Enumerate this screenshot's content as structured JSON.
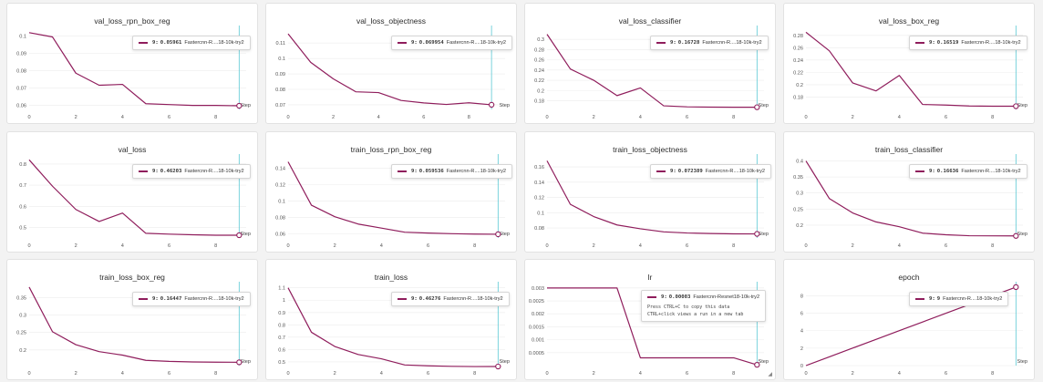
{
  "colors": {
    "line": "#8f1d5c",
    "cursor": "#5bc8d4",
    "grid": "#ececec",
    "tick": "#555555"
  },
  "x_axis_label": "Step",
  "tooltip_hint": [
    "Press CTRL+C to copy this data",
    "CTRL+click views a run in a new tab"
  ],
  "chart_data": [
    {
      "type": "line",
      "title": "val_loss_rpn_box_reg",
      "x": [
        0,
        1,
        2,
        3,
        4,
        5,
        6,
        7,
        8,
        9
      ],
      "values": [
        0.102,
        0.0995,
        0.0785,
        0.0715,
        0.072,
        0.0608,
        0.0603,
        0.0598,
        0.0598,
        0.0596
      ],
      "xlim": [
        0,
        9.3
      ],
      "ylim": [
        0.0575,
        0.104
      ],
      "xticks": [
        0,
        2,
        4,
        6,
        8
      ],
      "yticks": [
        0.06,
        0.07,
        0.08,
        0.09,
        0.1
      ],
      "ytick_labels": [
        "0.06",
        "0.07",
        "0.08",
        "0.09",
        "0.1"
      ],
      "tooltip": {
        "step": "9:",
        "value": "0.05961",
        "run": "Fastercnn-R....18-10k-try2"
      }
    },
    {
      "type": "line",
      "title": "val_loss_objectness",
      "x": [
        0,
        1,
        2,
        3,
        4,
        5,
        6,
        7,
        8,
        9
      ],
      "values": [
        0.116,
        0.0975,
        0.0868,
        0.0784,
        0.0779,
        0.0728,
        0.0712,
        0.0702,
        0.0713,
        0.07
      ],
      "xlim": [
        0,
        9.6
      ],
      "ylim": [
        0.067,
        0.119
      ],
      "xticks": [
        0,
        2,
        4,
        6,
        8
      ],
      "yticks": [
        0.07,
        0.08,
        0.09,
        0.1,
        0.11
      ],
      "ytick_labels": [
        "0.07",
        "0.08",
        "0.09",
        "0.1",
        "0.11"
      ],
      "tooltip": {
        "step": "9:",
        "value": "0.069954",
        "run": "Fastercnn-R....18-10k-try2"
      }
    },
    {
      "type": "line",
      "title": "val_loss_classifier",
      "x": [
        0,
        1,
        2,
        3,
        4,
        5,
        6,
        7,
        8,
        9
      ],
      "values": [
        0.31,
        0.242,
        0.22,
        0.19,
        0.205,
        0.17,
        0.168,
        0.1675,
        0.1673,
        0.1673
      ],
      "xlim": [
        0,
        9.3
      ],
      "ylim": [
        0.163,
        0.32
      ],
      "xticks": [
        0,
        2,
        4,
        6,
        8
      ],
      "yticks": [
        0.18,
        0.2,
        0.22,
        0.24,
        0.26,
        0.28,
        0.3
      ],
      "ytick_labels": [
        "0.18",
        "0.2",
        "0.22",
        "0.24",
        "0.26",
        "0.28",
        "0.3"
      ],
      "tooltip": {
        "step": "9:",
        "value": "0.16728",
        "run": "Fastercnn-R....18-10k-try2"
      }
    },
    {
      "type": "line",
      "title": "val_loss_box_reg",
      "x": [
        0,
        1,
        2,
        3,
        4,
        5,
        6,
        7,
        8,
        9
      ],
      "values": [
        0.285,
        0.255,
        0.203,
        0.19,
        0.215,
        0.168,
        0.167,
        0.1655,
        0.1652,
        0.1652
      ],
      "xlim": [
        0,
        9.3
      ],
      "ylim": [
        0.16,
        0.29
      ],
      "xticks": [
        0,
        2,
        4,
        6,
        8
      ],
      "yticks": [
        0.18,
        0.2,
        0.22,
        0.24,
        0.26,
        0.28
      ],
      "ytick_labels": [
        "0.18",
        "0.2",
        "0.22",
        "0.24",
        "0.26",
        "0.28"
      ],
      "tooltip": {
        "step": "9:",
        "value": "0.16519",
        "run": "Fastercnn-R....18-10k-try2"
      }
    },
    {
      "type": "line",
      "title": "val_loss",
      "x": [
        0,
        1,
        2,
        3,
        4,
        5,
        6,
        7,
        8,
        9
      ],
      "values": [
        0.82,
        0.695,
        0.585,
        0.528,
        0.568,
        0.472,
        0.468,
        0.465,
        0.463,
        0.463
      ],
      "xlim": [
        0,
        9.3
      ],
      "ylim": [
        0.45,
        0.83
      ],
      "xticks": [
        0,
        2,
        4,
        6,
        8
      ],
      "yticks": [
        0.5,
        0.6,
        0.7,
        0.8
      ],
      "ytick_labels": [
        "0.5",
        "0.6",
        "0.7",
        "0.8"
      ],
      "tooltip": {
        "step": "9:",
        "value": "0.46203",
        "run": "Fastercnn-R....18-10k-try2"
      }
    },
    {
      "type": "line",
      "title": "train_loss_rpn_box_reg",
      "x": [
        0,
        1,
        2,
        3,
        4,
        5,
        6,
        7,
        8,
        9
      ],
      "values": [
        0.148,
        0.095,
        0.081,
        0.072,
        0.067,
        0.062,
        0.061,
        0.0602,
        0.0597,
        0.0595
      ],
      "xlim": [
        0,
        9.3
      ],
      "ylim": [
        0.055,
        0.153
      ],
      "xticks": [
        0,
        2,
        4,
        6,
        8
      ],
      "yticks": [
        0.06,
        0.08,
        0.1,
        0.12,
        0.14
      ],
      "ytick_labels": [
        "0.06",
        "0.08",
        "0.1",
        "0.12",
        "0.14"
      ],
      "tooltip": {
        "step": "9:",
        "value": "0.059536",
        "run": "Fastercnn-R....18-10k-try2"
      }
    },
    {
      "type": "line",
      "title": "train_loss_objectness",
      "x": [
        0,
        1,
        2,
        3,
        4,
        5,
        6,
        7,
        8,
        9
      ],
      "values": [
        0.168,
        0.111,
        0.095,
        0.084,
        0.079,
        0.075,
        0.0735,
        0.0728,
        0.0724,
        0.0723
      ],
      "xlim": [
        0,
        9.3
      ],
      "ylim": [
        0.067,
        0.172
      ],
      "xticks": [
        0,
        2,
        4,
        6,
        8
      ],
      "yticks": [
        0.08,
        0.1,
        0.12,
        0.14,
        0.16
      ],
      "ytick_labels": [
        "0.08",
        "0.1",
        "0.12",
        "0.14",
        "0.16"
      ],
      "tooltip": {
        "step": "9:",
        "value": "0.072389",
        "run": "Fastercnn-R....18-10k-try2"
      }
    },
    {
      "type": "line",
      "title": "train_loss_classifier",
      "x": [
        0,
        1,
        2,
        3,
        4,
        5,
        6,
        7,
        8,
        9
      ],
      "values": [
        0.4,
        0.283,
        0.238,
        0.21,
        0.195,
        0.175,
        0.17,
        0.167,
        0.1665,
        0.1664
      ],
      "xlim": [
        0,
        9.3
      ],
      "ylim": [
        0.16,
        0.41
      ],
      "xticks": [
        0,
        2,
        4,
        6,
        8
      ],
      "yticks": [
        0.2,
        0.25,
        0.3,
        0.35,
        0.4
      ],
      "ytick_labels": [
        "0.2",
        "0.25",
        "0.3",
        "0.35",
        "0.4"
      ],
      "tooltip": {
        "step": "9:",
        "value": "0.16636",
        "run": "Fastercnn-R....18-10k-try2"
      }
    },
    {
      "type": "line",
      "title": "train_loss_box_reg",
      "x": [
        0,
        1,
        2,
        3,
        4,
        5,
        6,
        7,
        8,
        9
      ],
      "values": [
        0.38,
        0.252,
        0.215,
        0.195,
        0.185,
        0.17,
        0.167,
        0.1655,
        0.1648,
        0.1645
      ],
      "xlim": [
        0,
        9.3
      ],
      "ylim": [
        0.155,
        0.385
      ],
      "xticks": [
        0,
        2,
        4,
        6,
        8
      ],
      "yticks": [
        0.2,
        0.25,
        0.3,
        0.35
      ],
      "ytick_labels": [
        "0.2",
        "0.25",
        "0.3",
        "0.35"
      ],
      "tooltip": {
        "step": "9:",
        "value": "0.16447",
        "run": "Fastercnn-R....18-10k-try2"
      }
    },
    {
      "type": "line",
      "title": "train_loss",
      "x": [
        0,
        1,
        2,
        3,
        4,
        5,
        6,
        7,
        8,
        9
      ],
      "values": [
        1.1,
        0.74,
        0.625,
        0.56,
        0.525,
        0.475,
        0.468,
        0.464,
        0.462,
        0.4628
      ],
      "xlim": [
        0,
        9.3
      ],
      "ylim": [
        0.47,
        1.12
      ],
      "xticks": [
        0,
        2,
        4,
        6,
        8
      ],
      "yticks": [
        0.5,
        0.6,
        0.7,
        0.8,
        0.9,
        1,
        1.1
      ],
      "ytick_labels": [
        "0.5",
        "0.6",
        "0.7",
        "0.8",
        "0.9",
        "1",
        "1.1"
      ],
      "tooltip": {
        "step": "9:",
        "value": "0.46276",
        "run": "Fastercnn-R....18-10k-try2"
      }
    },
    {
      "type": "line",
      "title": "lr",
      "x": [
        0,
        1,
        2,
        3,
        4,
        5,
        6,
        7,
        8,
        9
      ],
      "values": [
        0.003,
        0.003,
        0.003,
        0.003,
        0.0003,
        0.0003,
        0.0003,
        0.0003,
        0.0003,
        3e-05
      ],
      "xlim": [
        0,
        9.3
      ],
      "ylim": [
        0,
        0.0031
      ],
      "xticks": [
        0,
        2,
        4,
        6,
        8
      ],
      "yticks": [
        0.0005,
        0.001,
        0.0015,
        0.002,
        0.0025,
        0.003
      ],
      "ytick_labels": [
        "0.0005",
        "0.001",
        "0.0015",
        "0.002",
        "0.0025",
        "0.003"
      ],
      "tooltip": {
        "step": "9:",
        "value": "0.00003",
        "run": "Fastercnn-Resnet18-10k-try2",
        "hint": true
      }
    },
    {
      "type": "line",
      "title": "epoch",
      "x": [
        0,
        1,
        2,
        3,
        4,
        5,
        6,
        7,
        8,
        9
      ],
      "values": [
        0,
        1,
        2,
        3,
        4,
        5,
        6,
        7,
        8,
        9
      ],
      "xlim": [
        0,
        9.3
      ],
      "ylim": [
        0,
        9.2
      ],
      "xticks": [
        0,
        2,
        4,
        6,
        8
      ],
      "yticks": [
        0,
        2,
        4,
        6,
        8
      ],
      "ytick_labels": [
        "0",
        "2",
        "4",
        "6",
        "8"
      ],
      "tooltip": {
        "step": "9:",
        "value": "9",
        "run": "Fastercnn-R....18-10k-try2"
      }
    }
  ]
}
